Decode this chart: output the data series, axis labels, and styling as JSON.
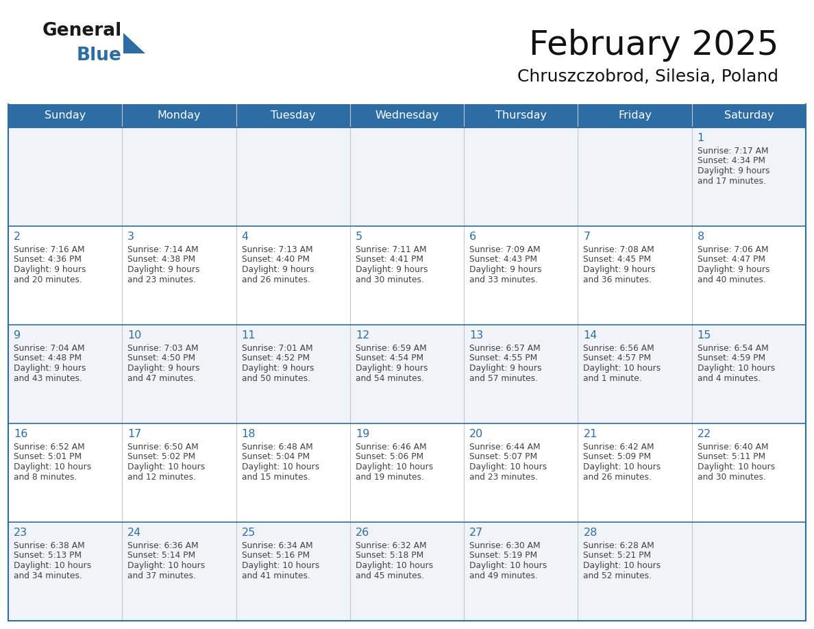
{
  "title": "February 2025",
  "subtitle": "Chruszczobrod, Silesia, Poland",
  "header_color": "#2E6DA4",
  "header_text_color": "#FFFFFF",
  "cell_bg_even": "#FFFFFF",
  "cell_bg_odd": "#F0F4F8",
  "border_color": "#2E6DA4",
  "grid_color": "#C0C8D0",
  "day_number_color": "#2E6DA4",
  "text_color": "#404040",
  "days_of_week": [
    "Sunday",
    "Monday",
    "Tuesday",
    "Wednesday",
    "Thursday",
    "Friday",
    "Saturday"
  ],
  "calendar_data": [
    [
      null,
      null,
      null,
      null,
      null,
      null,
      {
        "day": "1",
        "sunrise": "7:17 AM",
        "sunset": "4:34 PM",
        "daylight": "9 hours and 17 minutes."
      }
    ],
    [
      {
        "day": "2",
        "sunrise": "7:16 AM",
        "sunset": "4:36 PM",
        "daylight": "9 hours and 20 minutes."
      },
      {
        "day": "3",
        "sunrise": "7:14 AM",
        "sunset": "4:38 PM",
        "daylight": "9 hours and 23 minutes."
      },
      {
        "day": "4",
        "sunrise": "7:13 AM",
        "sunset": "4:40 PM",
        "daylight": "9 hours and 26 minutes."
      },
      {
        "day": "5",
        "sunrise": "7:11 AM",
        "sunset": "4:41 PM",
        "daylight": "9 hours and 30 minutes."
      },
      {
        "day": "6",
        "sunrise": "7:09 AM",
        "sunset": "4:43 PM",
        "daylight": "9 hours and 33 minutes."
      },
      {
        "day": "7",
        "sunrise": "7:08 AM",
        "sunset": "4:45 PM",
        "daylight": "9 hours and 36 minutes."
      },
      {
        "day": "8",
        "sunrise": "7:06 AM",
        "sunset": "4:47 PM",
        "daylight": "9 hours and 40 minutes."
      }
    ],
    [
      {
        "day": "9",
        "sunrise": "7:04 AM",
        "sunset": "4:48 PM",
        "daylight": "9 hours and 43 minutes."
      },
      {
        "day": "10",
        "sunrise": "7:03 AM",
        "sunset": "4:50 PM",
        "daylight": "9 hours and 47 minutes."
      },
      {
        "day": "11",
        "sunrise": "7:01 AM",
        "sunset": "4:52 PM",
        "daylight": "9 hours and 50 minutes."
      },
      {
        "day": "12",
        "sunrise": "6:59 AM",
        "sunset": "4:54 PM",
        "daylight": "9 hours and 54 minutes."
      },
      {
        "day": "13",
        "sunrise": "6:57 AM",
        "sunset": "4:55 PM",
        "daylight": "9 hours and 57 minutes."
      },
      {
        "day": "14",
        "sunrise": "6:56 AM",
        "sunset": "4:57 PM",
        "daylight": "10 hours and 1 minute."
      },
      {
        "day": "15",
        "sunrise": "6:54 AM",
        "sunset": "4:59 PM",
        "daylight": "10 hours and 4 minutes."
      }
    ],
    [
      {
        "day": "16",
        "sunrise": "6:52 AM",
        "sunset": "5:01 PM",
        "daylight": "10 hours and 8 minutes."
      },
      {
        "day": "17",
        "sunrise": "6:50 AM",
        "sunset": "5:02 PM",
        "daylight": "10 hours and 12 minutes."
      },
      {
        "day": "18",
        "sunrise": "6:48 AM",
        "sunset": "5:04 PM",
        "daylight": "10 hours and 15 minutes."
      },
      {
        "day": "19",
        "sunrise": "6:46 AM",
        "sunset": "5:06 PM",
        "daylight": "10 hours and 19 minutes."
      },
      {
        "day": "20",
        "sunrise": "6:44 AM",
        "sunset": "5:07 PM",
        "daylight": "10 hours and 23 minutes."
      },
      {
        "day": "21",
        "sunrise": "6:42 AM",
        "sunset": "5:09 PM",
        "daylight": "10 hours and 26 minutes."
      },
      {
        "day": "22",
        "sunrise": "6:40 AM",
        "sunset": "5:11 PM",
        "daylight": "10 hours and 30 minutes."
      }
    ],
    [
      {
        "day": "23",
        "sunrise": "6:38 AM",
        "sunset": "5:13 PM",
        "daylight": "10 hours and 34 minutes."
      },
      {
        "day": "24",
        "sunrise": "6:36 AM",
        "sunset": "5:14 PM",
        "daylight": "10 hours and 37 minutes."
      },
      {
        "day": "25",
        "sunrise": "6:34 AM",
        "sunset": "5:16 PM",
        "daylight": "10 hours and 41 minutes."
      },
      {
        "day": "26",
        "sunrise": "6:32 AM",
        "sunset": "5:18 PM",
        "daylight": "10 hours and 45 minutes."
      },
      {
        "day": "27",
        "sunrise": "6:30 AM",
        "sunset": "5:19 PM",
        "daylight": "10 hours and 49 minutes."
      },
      {
        "day": "28",
        "sunrise": "6:28 AM",
        "sunset": "5:21 PM",
        "daylight": "10 hours and 52 minutes."
      },
      null
    ]
  ],
  "logo_general_color": "#1a1a1a",
  "logo_blue_color": "#2E6DA4",
  "logo_triangle_color": "#2E6DA4"
}
